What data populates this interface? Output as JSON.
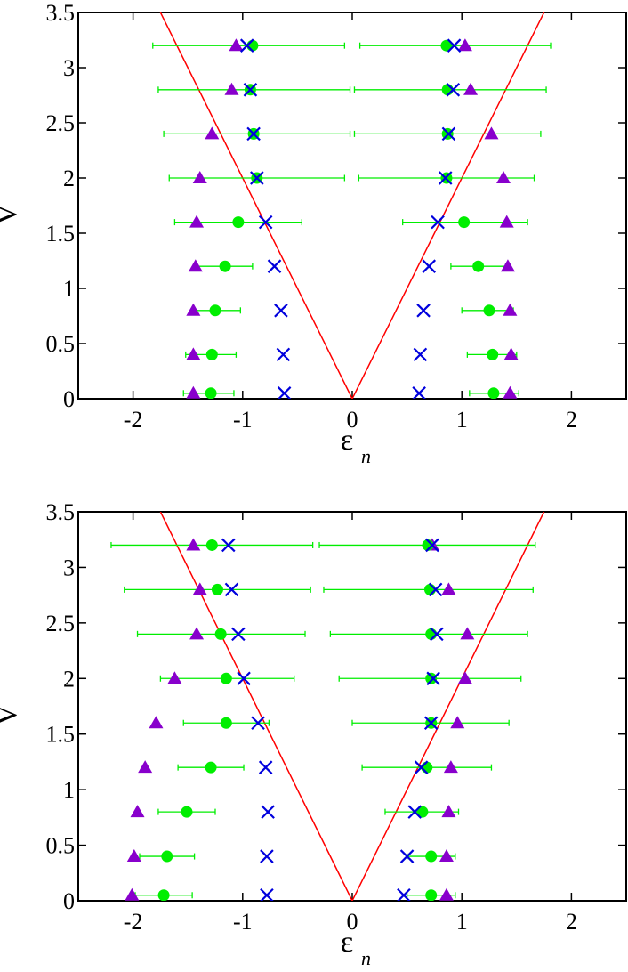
{
  "chart_data": [
    {
      "type": "scatter",
      "xlabel": "ε",
      "xlabel_subscript": "n",
      "ylabel": "V",
      "xlim": [
        -2.5,
        2.5
      ],
      "ylim": [
        0,
        3.5
      ],
      "xticks": [
        -2,
        -1,
        0,
        1,
        2
      ],
      "xtick_labels": [
        "-2",
        "-1",
        "0",
        "1",
        "2"
      ],
      "yticks": [
        0,
        0.5,
        1,
        1.5,
        2,
        2.5,
        3,
        3.5
      ],
      "ytick_labels": [
        "0",
        "0.5",
        "1",
        "1.5",
        "2",
        "2.5",
        "3",
        "3.5"
      ],
      "grid": false,
      "lines": [
        {
          "color": "#ff0000",
          "points": [
            [
              -1.75,
              3.5
            ],
            [
              0,
              0
            ],
            [
              1.75,
              3.5
            ]
          ]
        }
      ],
      "series": [
        {
          "marker": "triangle",
          "color": "#8800cc",
          "points": [
            [
              -1.45,
              0.05
            ],
            [
              1.44,
              0.05
            ],
            [
              -1.45,
              0.4
            ],
            [
              1.45,
              0.4
            ],
            [
              -1.45,
              0.8
            ],
            [
              1.44,
              0.8
            ],
            [
              -1.43,
              1.2
            ],
            [
              1.42,
              1.2
            ],
            [
              -1.42,
              1.6
            ],
            [
              1.41,
              1.6
            ],
            [
              -1.39,
              2.0
            ],
            [
              1.38,
              2.0
            ],
            [
              -1.28,
              2.4
            ],
            [
              1.27,
              2.4
            ],
            [
              -1.1,
              2.8
            ],
            [
              1.08,
              2.8
            ],
            [
              -1.06,
              3.2
            ],
            [
              1.03,
              3.2
            ]
          ]
        },
        {
          "marker": "circle",
          "color": "#00ee00",
          "points": [
            [
              -1.29,
              0.05
            ],
            [
              1.29,
              0.05
            ],
            [
              -1.28,
              0.4
            ],
            [
              1.28,
              0.4
            ],
            [
              -1.25,
              0.8
            ],
            [
              1.25,
              0.8
            ],
            [
              -1.16,
              1.2
            ],
            [
              1.15,
              1.2
            ],
            [
              -1.04,
              1.6
            ],
            [
              1.02,
              1.6
            ],
            [
              -0.87,
              2.0
            ],
            [
              0.86,
              2.0
            ],
            [
              -0.9,
              2.4
            ],
            [
              0.87,
              2.4
            ],
            [
              -0.93,
              2.8
            ],
            [
              0.87,
              2.8
            ],
            [
              -0.91,
              3.2
            ],
            [
              0.86,
              3.2
            ]
          ],
          "xerr": [
            [
              -1.54,
              -1.08
            ],
            [
              1.07,
              1.52
            ],
            [
              -1.52,
              -1.06
            ],
            [
              1.05,
              1.5
            ],
            [
              -1.46,
              -1.02
            ],
            [
              1.0,
              1.47
            ],
            [
              -1.42,
              -0.91
            ],
            [
              0.9,
              1.4
            ],
            [
              -1.62,
              -0.46
            ],
            [
              0.46,
              1.6
            ],
            [
              -1.67,
              -0.07
            ],
            [
              0.06,
              1.66
            ],
            [
              -1.72,
              -0.02
            ],
            [
              0.02,
              1.72
            ],
            [
              -1.77,
              -0.02
            ],
            [
              0.02,
              1.77
            ],
            [
              -1.82,
              -0.07
            ],
            [
              0.07,
              1.81
            ]
          ]
        },
        {
          "marker": "x",
          "color": "#0000dd",
          "points": [
            [
              -0.62,
              0.05
            ],
            [
              0.61,
              0.05
            ],
            [
              -0.63,
              0.4
            ],
            [
              0.62,
              0.4
            ],
            [
              -0.65,
              0.8
            ],
            [
              0.65,
              0.8
            ],
            [
              -0.71,
              1.2
            ],
            [
              0.7,
              1.2
            ],
            [
              -0.79,
              1.6
            ],
            [
              0.78,
              1.6
            ],
            [
              -0.87,
              2.0
            ],
            [
              0.85,
              2.0
            ],
            [
              -0.9,
              2.4
            ],
            [
              0.88,
              2.4
            ],
            [
              -0.93,
              2.8
            ],
            [
              0.92,
              2.8
            ],
            [
              -0.96,
              3.2
            ],
            [
              0.93,
              3.2
            ]
          ]
        }
      ]
    },
    {
      "type": "scatter",
      "xlabel": "ε",
      "xlabel_subscript": "n",
      "ylabel": "V",
      "xlim": [
        -2.5,
        2.5
      ],
      "ylim": [
        0,
        3.5
      ],
      "xticks": [
        -2,
        -1,
        0,
        1,
        2
      ],
      "xtick_labels": [
        "-2",
        "-1",
        "0",
        "1",
        "2"
      ],
      "yticks": [
        0,
        0.5,
        1,
        1.5,
        2,
        2.5,
        3,
        3.5
      ],
      "ytick_labels": [
        "0",
        "0.5",
        "1",
        "1.5",
        "2",
        "2.5",
        "3",
        "3.5"
      ],
      "grid": false,
      "lines": [
        {
          "color": "#ff0000",
          "points": [
            [
              -1.75,
              3.5
            ],
            [
              0,
              0
            ],
            [
              1.75,
              3.5
            ]
          ]
        }
      ],
      "series": [
        {
          "marker": "triangle",
          "color": "#8800cc",
          "points": [
            [
              -2.01,
              0.05
            ],
            [
              0.86,
              0.05
            ],
            [
              -1.99,
              0.4
            ],
            [
              0.86,
              0.4
            ],
            [
              -1.96,
              0.8
            ],
            [
              0.88,
              0.8
            ],
            [
              -1.89,
              1.2
            ],
            [
              0.9,
              1.2
            ],
            [
              -1.79,
              1.6
            ],
            [
              0.96,
              1.6
            ],
            [
              -1.62,
              2.0
            ],
            [
              1.03,
              2.0
            ],
            [
              -1.42,
              2.4
            ],
            [
              1.05,
              2.4
            ],
            [
              -1.39,
              2.8
            ],
            [
              0.88,
              2.8
            ],
            [
              -1.45,
              3.2
            ],
            [
              0.73,
              3.2
            ]
          ]
        },
        {
          "marker": "circle",
          "color": "#00ee00",
          "points": [
            [
              -1.72,
              0.05
            ],
            [
              0.72,
              0.05
            ],
            [
              -1.69,
              0.4
            ],
            [
              0.72,
              0.4
            ],
            [
              -1.51,
              0.8
            ],
            [
              0.64,
              0.8
            ],
            [
              -1.29,
              1.2
            ],
            [
              0.68,
              1.2
            ],
            [
              -1.15,
              1.6
            ],
            [
              0.72,
              1.6
            ],
            [
              -1.15,
              2.0
            ],
            [
              0.72,
              2.0
            ],
            [
              -1.2,
              2.4
            ],
            [
              0.72,
              2.4
            ],
            [
              -1.23,
              2.8
            ],
            [
              0.71,
              2.8
            ],
            [
              -1.28,
              3.2
            ],
            [
              0.69,
              3.2
            ]
          ],
          "xerr": [
            [
              -1.98,
              -1.46
            ],
            [
              0.5,
              0.94
            ],
            [
              -1.94,
              -1.44
            ],
            [
              0.5,
              0.94
            ],
            [
              -1.77,
              -1.25
            ],
            [
              0.3,
              0.97
            ],
            [
              -1.59,
              -0.99
            ],
            [
              0.09,
              1.27
            ],
            [
              -1.54,
              -0.76
            ],
            [
              0.0,
              1.43
            ],
            [
              -1.75,
              -0.53
            ],
            [
              -0.12,
              1.54
            ],
            [
              -1.96,
              -0.43
            ],
            [
              -0.2,
              1.6
            ],
            [
              -2.08,
              -0.38
            ],
            [
              -0.26,
              1.65
            ],
            [
              -2.2,
              -0.36
            ],
            [
              -0.3,
              1.67
            ]
          ]
        },
        {
          "marker": "x",
          "color": "#0000dd",
          "points": [
            [
              -0.78,
              0.05
            ],
            [
              0.47,
              0.05
            ],
            [
              -0.78,
              0.4
            ],
            [
              0.5,
              0.4
            ],
            [
              -0.77,
              0.8
            ],
            [
              0.57,
              0.8
            ],
            [
              -0.79,
              1.2
            ],
            [
              0.63,
              1.2
            ],
            [
              -0.86,
              1.6
            ],
            [
              0.72,
              1.6
            ],
            [
              -0.99,
              2.0
            ],
            [
              0.74,
              2.0
            ],
            [
              -1.04,
              2.4
            ],
            [
              0.77,
              2.4
            ],
            [
              -1.1,
              2.8
            ],
            [
              0.76,
              2.8
            ],
            [
              -1.13,
              3.2
            ],
            [
              0.73,
              3.2
            ]
          ]
        }
      ]
    }
  ]
}
